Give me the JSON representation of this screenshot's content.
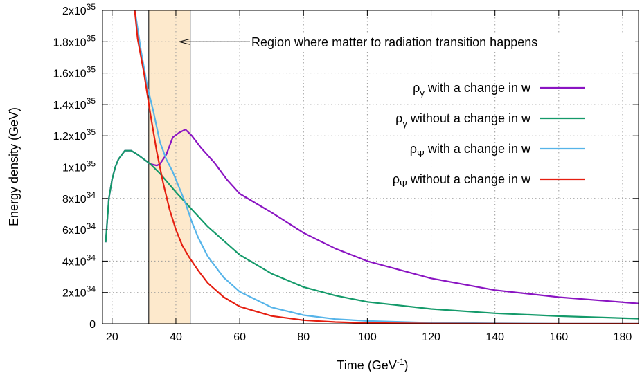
{
  "chart_data": {
    "type": "line",
    "xlabel": "Time (GeV",
    "xlabel_sup": "-1",
    "xlabel_end": ")",
    "ylabel": "Energy density (GeV)",
    "xlim": [
      17,
      185
    ],
    "ylim": [
      0,
      2e+35
    ],
    "grid": true,
    "legend_position": "right",
    "x_ticks": [
      {
        "value": 20,
        "label": "20"
      },
      {
        "value": 40,
        "label": "40"
      },
      {
        "value": 60,
        "label": "60"
      },
      {
        "value": 80,
        "label": "80"
      },
      {
        "value": 100,
        "label": "100"
      },
      {
        "value": 120,
        "label": "120"
      },
      {
        "value": 140,
        "label": "140"
      },
      {
        "value": 160,
        "label": "160"
      },
      {
        "value": 180,
        "label": "180"
      }
    ],
    "y_ticks": [
      {
        "value": 0,
        "mantissa": "0",
        "exp": ""
      },
      {
        "value": 2e+34,
        "mantissa": "2x10",
        "exp": "34"
      },
      {
        "value": 4e+34,
        "mantissa": "4x10",
        "exp": "34"
      },
      {
        "value": 6e+34,
        "mantissa": "6x10",
        "exp": "34"
      },
      {
        "value": 8e+34,
        "mantissa": "8x10",
        "exp": "34"
      },
      {
        "value": 1e+35,
        "mantissa": "1x10",
        "exp": "35"
      },
      {
        "value": 1.2e+35,
        "mantissa": "1.2x10",
        "exp": "35"
      },
      {
        "value": 1.4e+35,
        "mantissa": "1.4x10",
        "exp": "35"
      },
      {
        "value": 1.6e+35,
        "mantissa": "1.6x10",
        "exp": "35"
      },
      {
        "value": 1.8e+35,
        "mantissa": "1.8x10",
        "exp": "35"
      },
      {
        "value": 2e+35,
        "mantissa": "2x10",
        "exp": "35"
      }
    ],
    "shaded_region": {
      "x": [
        31.5,
        44.5
      ],
      "color": "#fde9cc"
    },
    "annotation": {
      "text": "Region where matter to radiation transition happens",
      "arrow_to": [
        41,
        1.8e+35
      ]
    },
    "series": [
      {
        "name_base": "ρ",
        "name_sub": "γ",
        "name_rest": " with a change in w",
        "color": "#8a14c2",
        "x": [
          18,
          19,
          20,
          21,
          22,
          24,
          26,
          28,
          30,
          32,
          34,
          35,
          37,
          39,
          41,
          43,
          45,
          48,
          52,
          56,
          60,
          70,
          80,
          90,
          100,
          120,
          140,
          160,
          185
        ],
        "y": [
          5.2e+34,
          8e+34,
          9.2e+34,
          1e+35,
          1.05e+35,
          1.105e+35,
          1.105e+35,
          1.08e+35,
          1.05e+35,
          1.02e+35,
          1.01e+35,
          1.02e+35,
          1.08e+35,
          1.19e+35,
          1.22e+35,
          1.24e+35,
          1.2e+35,
          1.12e+35,
          1.03e+35,
          9.2e+34,
          8.3e+34,
          7.1e+34,
          5.8e+34,
          4.8e+34,
          4e+34,
          2.9e+34,
          2.15e+34,
          1.7e+34,
          1.3e+34
        ]
      },
      {
        "name_base": "ρ",
        "name_sub": "γ",
        "name_rest": " without a change in w",
        "color": "#149a6a",
        "x": [
          18,
          19,
          20,
          21,
          22,
          24,
          26,
          28,
          30,
          32,
          35,
          40,
          45,
          50,
          60,
          70,
          80,
          90,
          100,
          120,
          140,
          160,
          185
        ],
        "y": [
          5.2e+34,
          8e+34,
          9.2e+34,
          1e+35,
          1.05e+35,
          1.105e+35,
          1.105e+35,
          1.08e+35,
          1.05e+35,
          1.02e+35,
          9.6e+34,
          8.4e+34,
          7.3e+34,
          6.2e+34,
          4.4e+34,
          3.2e+34,
          2.35e+34,
          1.8e+34,
          1.4e+34,
          9.5e+33,
          6.7e+33,
          4.9e+33,
          3.3e+33
        ]
      },
      {
        "name_base": "ρ",
        "name_sub": "Ψ",
        "name_rest": " with a change in w",
        "color": "#56b4e9",
        "x": [
          27,
          29,
          31,
          33,
          35,
          37,
          39,
          41,
          43,
          45,
          47,
          50,
          55,
          60,
          70,
          80,
          90,
          100,
          120,
          140,
          160,
          185
        ],
        "y": [
          2.02e+35,
          1.75e+35,
          1.52e+35,
          1.35e+35,
          1.16e+35,
          1.05e+35,
          9.7e+34,
          8.7e+34,
          7.7e+34,
          6.5e+34,
          5.5e+34,
          4.3e+34,
          2.95e+34,
          2.05e+34,
          1.05e+34,
          5.5e+33,
          3e+33,
          1.8e+33,
          6e+32,
          2.5e+32,
          1e+32,
          4e+31
        ]
      },
      {
        "name_base": "ρ",
        "name_sub": "Ψ",
        "name_rest": " without a change in w",
        "color": "#e51e10",
        "x": [
          27,
          28,
          30,
          32,
          34,
          36,
          38,
          40,
          42,
          44,
          47,
          50,
          55,
          60,
          70,
          80,
          90,
          100,
          120,
          140,
          160,
          185
        ],
        "y": [
          2.02e+35,
          1.82e+35,
          1.6e+35,
          1.34e+35,
          1.1e+35,
          9e+34,
          7.3e+34,
          6e+34,
          5e+34,
          4.3e+34,
          3.4e+34,
          2.6e+34,
          1.7e+34,
          1.1e+34,
          5e+33,
          2.3e+33,
          1.1e+33,
          5e+32,
          1.2e+32,
          3e+31,
          8e+30,
          2e+30
        ]
      }
    ]
  }
}
